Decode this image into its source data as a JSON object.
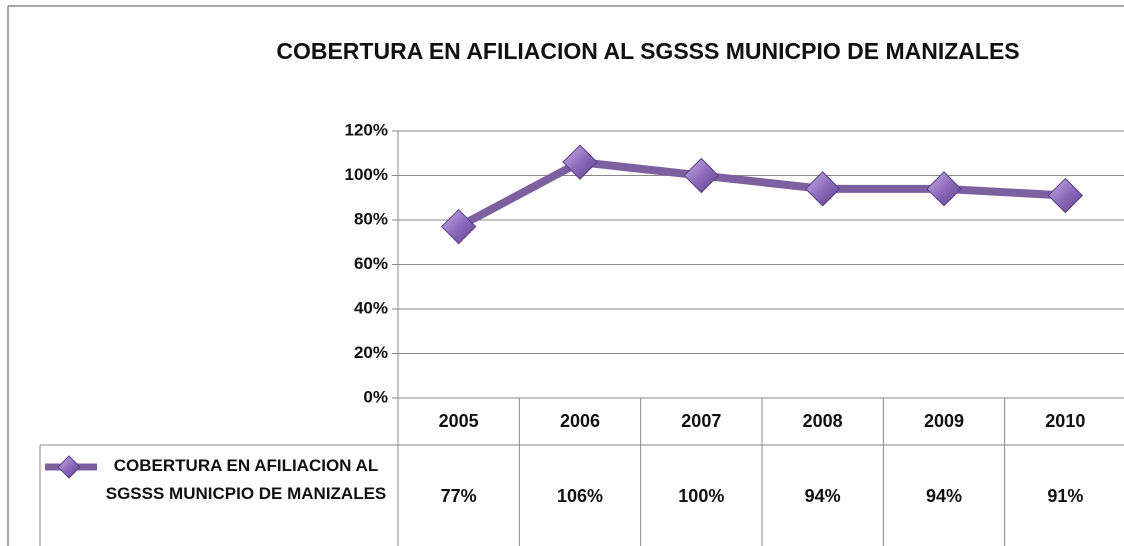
{
  "chart_data": {
    "type": "line",
    "title": "COBERTURA EN AFILIACION AL SGSSS MUNICPIO DE MANIZALES",
    "categories": [
      "2005",
      "2006",
      "2007",
      "2008",
      "2009",
      "2010"
    ],
    "series": [
      {
        "name": "COBERTURA EN AFILIACION AL SGSSS MUNICPIO DE MANIZALES",
        "color": "#7d60a0",
        "values": [
          77,
          106,
          100,
          94,
          94,
          91
        ],
        "value_labels": [
          "77%",
          "106%",
          "100%",
          "94%",
          "94%",
          "91%"
        ]
      }
    ],
    "ylim": [
      0,
      120
    ],
    "yticks": [
      {
        "value": 0,
        "label": "0%"
      },
      {
        "value": 20,
        "label": "20%"
      },
      {
        "value": 40,
        "label": "40%"
      },
      {
        "value": 60,
        "label": "60%"
      },
      {
        "value": 80,
        "label": "80%"
      },
      {
        "value": 100,
        "label": "100%"
      },
      {
        "value": 120,
        "label": "120%"
      }
    ],
    "grid": true
  }
}
